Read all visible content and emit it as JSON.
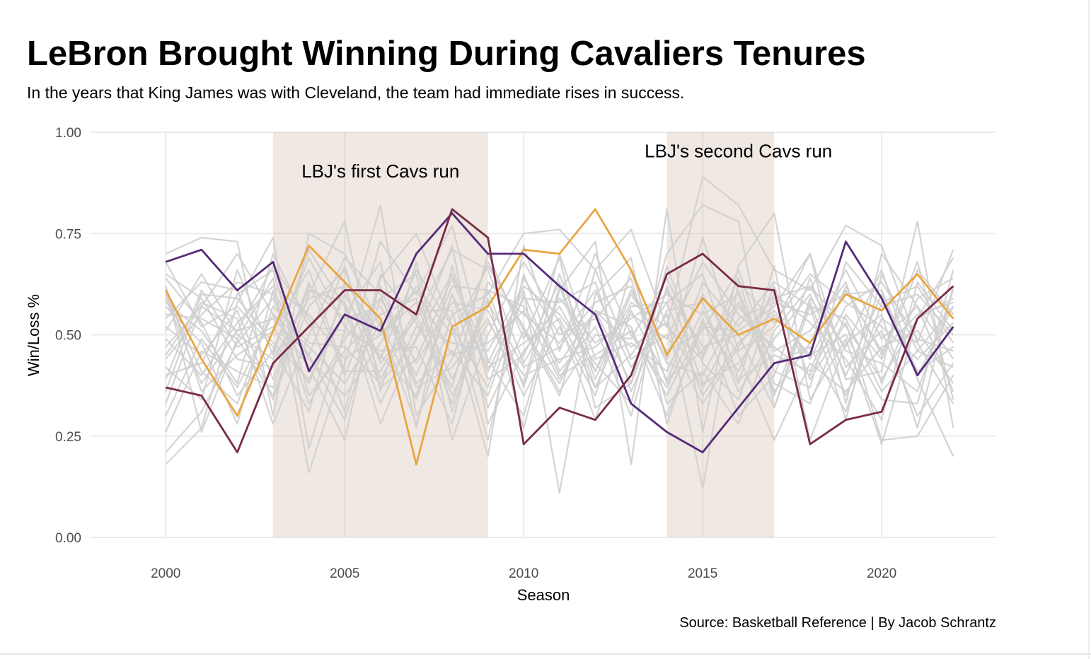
{
  "chart_data": {
    "type": "line",
    "title": "LeBron Brought Winning During Cavaliers Tenures",
    "subtitle": "In the years that King James was with Cleveland, the team had immediate rises in success.",
    "xlabel": "Season",
    "ylabel": "Win/Loss %",
    "caption": "Source: Basketball Reference | By Jacob Schrantz",
    "xlim": [
      1997.9,
      2023.2
    ],
    "ylim": [
      0,
      1
    ],
    "x_ticks": [
      2000,
      2005,
      2010,
      2015,
      2020
    ],
    "y_ticks": [
      0,
      0.25,
      0.5,
      0.75,
      1
    ],
    "y_tick_labels": [
      "0.00",
      "0.25",
      "0.50",
      "0.75",
      "1.00"
    ],
    "grid": true,
    "legend": "none",
    "shaded_regions": [
      {
        "x_start": 2003,
        "x_end": 2009,
        "label": "LBJ's first Cavs run",
        "label_x": 2006,
        "label_y": 0.9
      },
      {
        "x_start": 2014,
        "x_end": 2017,
        "label": "LBJ's second Cavs run",
        "label_x": 2016,
        "label_y": 0.95
      }
    ],
    "years": [
      2000,
      2001,
      2002,
      2003,
      2004,
      2005,
      2006,
      2007,
      2008,
      2009,
      2010,
      2011,
      2012,
      2013,
      2014,
      2015,
      2016,
      2017,
      2018,
      2019,
      2020,
      2021,
      2022
    ],
    "highlighted_series": [
      {
        "color": "#e9a541",
        "values": [
          0.61,
          0.44,
          0.3,
          0.51,
          0.72,
          0.63,
          0.54,
          0.18,
          0.52,
          0.57,
          0.71,
          0.7,
          0.81,
          0.66,
          0.45,
          0.59,
          0.5,
          0.54,
          0.48,
          0.6,
          0.56,
          0.65,
          0.54
        ]
      },
      {
        "color": "#552a79",
        "values": [
          0.68,
          0.71,
          0.61,
          0.68,
          0.41,
          0.55,
          0.51,
          0.7,
          0.8,
          0.7,
          0.7,
          0.62,
          0.55,
          0.33,
          0.26,
          0.21,
          0.32,
          0.43,
          0.45,
          0.73,
          0.59,
          0.4,
          0.52
        ]
      },
      {
        "color": "#7a2a47",
        "values": [
          0.37,
          0.35,
          0.21,
          0.43,
          0.52,
          0.61,
          0.61,
          0.55,
          0.81,
          0.74,
          0.23,
          0.32,
          0.29,
          0.4,
          0.65,
          0.7,
          0.62,
          0.61,
          0.23,
          0.29,
          0.31,
          0.54,
          0.62
        ]
      }
    ],
    "background_series_color": "#cfcfcf",
    "background_series": [
      [
        0.7,
        0.74,
        0.73,
        0.3,
        0.75,
        0.7,
        0.52,
        0.28,
        0.55,
        0.6,
        0.75,
        0.76,
        0.66,
        0.76,
        0.52,
        0.89,
        0.82,
        0.66,
        0.61,
        0.77,
        0.72,
        0.48,
        0.71
      ],
      [
        0.18,
        0.27,
        0.58,
        0.74,
        0.22,
        0.51,
        0.82,
        0.3,
        0.44,
        0.68,
        0.51,
        0.38,
        0.56,
        0.38,
        0.7,
        0.82,
        0.78,
        0.32,
        0.59,
        0.47,
        0.66,
        0.39,
        0.2
      ],
      [
        0.62,
        0.26,
        0.49,
        0.64,
        0.16,
        0.43,
        0.73,
        0.6,
        0.77,
        0.43,
        0.61,
        0.11,
        0.6,
        0.69,
        0.28,
        0.54,
        0.3,
        0.4,
        0.64,
        0.39,
        0.41,
        0.78,
        0.27
      ],
      [
        0.55,
        0.54,
        0.49,
        0.35,
        0.6,
        0.78,
        0.36,
        0.68,
        0.31,
        0.59,
        0.27,
        0.61,
        0.73,
        0.18,
        0.81,
        0.26,
        0.67,
        0.8,
        0.34,
        0.49,
        0.23,
        0.54,
        0.69
      ],
      [
        0.3,
        0.49,
        0.37,
        0.55,
        0.42,
        0.24,
        0.64,
        0.75,
        0.52,
        0.2,
        0.72,
        0.46,
        0.7,
        0.5,
        0.37,
        0.56,
        0.38,
        0.67,
        0.24,
        0.48,
        0.55,
        0.27,
        0.62
      ],
      [
        0.42,
        0.34,
        0.66,
        0.45,
        0.71,
        0.57,
        0.28,
        0.49,
        0.72,
        0.28,
        0.46,
        0.57,
        0.41,
        0.61,
        0.44,
        0.74,
        0.46,
        0.52,
        0.7,
        0.33,
        0.7,
        0.57,
        0.44
      ],
      [
        0.47,
        0.57,
        0.51,
        0.67,
        0.54,
        0.31,
        0.65,
        0.53,
        0.37,
        0.7,
        0.49,
        0.69,
        0.32,
        0.38,
        0.61,
        0.47,
        0.5,
        0.32,
        0.57,
        0.54,
        0.36,
        0.46,
        0.57
      ],
      [
        0.68,
        0.52,
        0.57,
        0.47,
        0.31,
        0.63,
        0.5,
        0.61,
        0.45,
        0.48,
        0.56,
        0.39,
        0.56,
        0.47,
        0.53,
        0.37,
        0.54,
        0.58,
        0.55,
        0.6,
        0.61,
        0.4,
        0.57
      ],
      [
        0.6,
        0.41,
        0.33,
        0.57,
        0.48,
        0.47,
        0.38,
        0.49,
        0.65,
        0.44,
        0.3,
        0.62,
        0.37,
        0.57,
        0.58,
        0.65,
        0.39,
        0.45,
        0.41,
        0.62,
        0.45,
        0.68,
        0.34
      ],
      [
        0.54,
        0.63,
        0.61,
        0.39,
        0.62,
        0.54,
        0.57,
        0.4,
        0.62,
        0.61,
        0.57,
        0.43,
        0.56,
        0.52,
        0.3,
        0.52,
        0.51,
        0.57,
        0.7,
        0.42,
        0.51,
        0.3,
        0.43
      ],
      [
        0.44,
        0.55,
        0.63,
        0.6,
        0.33,
        0.49,
        0.59,
        0.65,
        0.24,
        0.5,
        0.68,
        0.53,
        0.29,
        0.56,
        0.39,
        0.46,
        0.58,
        0.43,
        0.47,
        0.31,
        0.58,
        0.62,
        0.48
      ],
      [
        0.39,
        0.61,
        0.47,
        0.52,
        0.38,
        0.6,
        0.44,
        0.66,
        0.52,
        0.37,
        0.64,
        0.5,
        0.54,
        0.64,
        0.33,
        0.41,
        0.28,
        0.51,
        0.62,
        0.52,
        0.39,
        0.54,
        0.59
      ],
      [
        0.52,
        0.45,
        0.56,
        0.34,
        0.57,
        0.66,
        0.43,
        0.54,
        0.71,
        0.66,
        0.43,
        0.59,
        0.48,
        0.54,
        0.6,
        0.55,
        0.6,
        0.36,
        0.48,
        0.66,
        0.49,
        0.57,
        0.36
      ],
      [
        0.33,
        0.57,
        0.7,
        0.55,
        0.47,
        0.38,
        0.53,
        0.34,
        0.6,
        0.32,
        0.51,
        0.35,
        0.66,
        0.44,
        0.5,
        0.33,
        0.47,
        0.6,
        0.53,
        0.44,
        0.29,
        0.63,
        0.51
      ],
      [
        0.49,
        0.4,
        0.53,
        0.62,
        0.55,
        0.44,
        0.5,
        0.58,
        0.35,
        0.53,
        0.4,
        0.44,
        0.47,
        0.55,
        0.49,
        0.68,
        0.55,
        0.47,
        0.4,
        0.57,
        0.63,
        0.49,
        0.46
      ],
      [
        0.65,
        0.59,
        0.44,
        0.42,
        0.61,
        0.58,
        0.33,
        0.52,
        0.48,
        0.46,
        0.62,
        0.55,
        0.43,
        0.33,
        0.67,
        0.43,
        0.34,
        0.59,
        0.62,
        0.46,
        0.43,
        0.36,
        0.61
      ],
      [
        0.21,
        0.31,
        0.48,
        0.59,
        0.45,
        0.29,
        0.59,
        0.43,
        0.58,
        0.56,
        0.38,
        0.7,
        0.44,
        0.48,
        0.41,
        0.6,
        0.45,
        0.24,
        0.43,
        0.36,
        0.47,
        0.51,
        0.38
      ],
      [
        0.58,
        0.51,
        0.38,
        0.7,
        0.52,
        0.51,
        0.46,
        0.47,
        0.28,
        0.63,
        0.55,
        0.48,
        0.61,
        0.42,
        0.55,
        0.12,
        0.63,
        0.53,
        0.65,
        0.58,
        0.52,
        0.44,
        0.53
      ],
      [
        0.36,
        0.6,
        0.59,
        0.48,
        0.39,
        0.55,
        0.68,
        0.27,
        0.67,
        0.39,
        0.45,
        0.63,
        0.39,
        0.6,
        0.46,
        0.51,
        0.66,
        0.41,
        0.37,
        0.68,
        0.57,
        0.6,
        0.5
      ],
      [
        0.62,
        0.36,
        0.45,
        0.51,
        0.66,
        0.41,
        0.41,
        0.56,
        0.56,
        0.24,
        0.65,
        0.41,
        0.52,
        0.3,
        0.62,
        0.38,
        0.43,
        0.55,
        0.45,
        0.5,
        0.34,
        0.33,
        0.66
      ],
      [
        0.45,
        0.58,
        0.54,
        0.28,
        0.5,
        0.69,
        0.6,
        0.37,
        0.42,
        0.54,
        0.35,
        0.52,
        0.35,
        0.66,
        0.38,
        0.63,
        0.52,
        0.63,
        0.57,
        0.29,
        0.65,
        0.46,
        0.42
      ],
      [
        0.57,
        0.48,
        0.28,
        0.61,
        0.44,
        0.35,
        0.48,
        0.62,
        0.5,
        0.67,
        0.52,
        0.36,
        0.5,
        0.49,
        0.64,
        0.45,
        0.61,
        0.38,
        0.33,
        0.55,
        0.44,
        0.66,
        0.55
      ],
      [
        0.51,
        0.65,
        0.5,
        0.44,
        0.59,
        0.62,
        0.37,
        0.44,
        0.64,
        0.41,
        0.59,
        0.58,
        0.63,
        0.36,
        0.56,
        0.58,
        0.36,
        0.49,
        0.6,
        0.4,
        0.6,
        0.41,
        0.47
      ],
      [
        0.4,
        0.43,
        0.6,
        0.66,
        0.35,
        0.46,
        0.55,
        0.59,
        0.39,
        0.58,
        0.42,
        0.47,
        0.58,
        0.62,
        0.43,
        0.4,
        0.57,
        0.46,
        0.51,
        0.63,
        0.38,
        0.59,
        0.64
      ],
      [
        0.26,
        0.46,
        0.41,
        0.37,
        0.63,
        0.4,
        0.62,
        0.38,
        0.46,
        0.35,
        0.6,
        0.4,
        0.45,
        0.51,
        0.35,
        0.53,
        0.41,
        0.62,
        0.39,
        0.53,
        0.24,
        0.25,
        0.4
      ],
      [
        0.59,
        0.38,
        0.51,
        0.54,
        0.45,
        0.67,
        0.39,
        0.55,
        0.33,
        0.61,
        0.37,
        0.65,
        0.41,
        0.58,
        0.52,
        0.44,
        0.64,
        0.35,
        0.58,
        0.35,
        0.54,
        0.48,
        0.33
      ],
      [
        0.64,
        0.53,
        0.35,
        0.46,
        0.69,
        0.52,
        0.45,
        0.35,
        0.6,
        0.42,
        0.48,
        0.54,
        0.37,
        0.45,
        0.58,
        0.35,
        0.48,
        0.56,
        0.44,
        0.61,
        0.46,
        0.55,
        0.58
      ]
    ]
  }
}
